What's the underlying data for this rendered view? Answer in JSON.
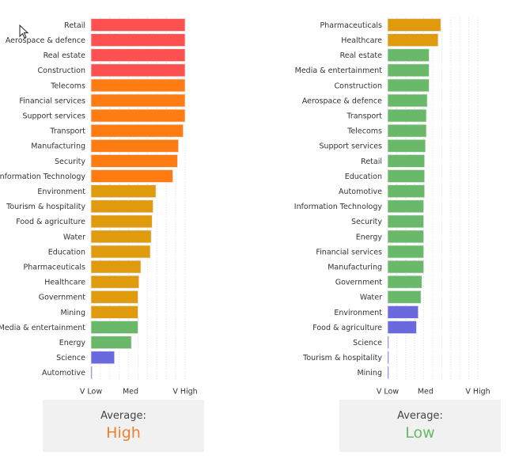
{
  "scale_labels": [
    "V Low",
    "Med",
    "V High"
  ],
  "colors": {
    "red": "#fd5051",
    "orange": "#ff7c12",
    "amber": "#e09a0e",
    "green": "#6ab86a",
    "blue": "#6a6ade"
  },
  "chart_data": [
    {
      "type": "bar",
      "orientation": "horizontal",
      "xlim": [
        0,
        1
      ],
      "x_ticks": [
        "V Low",
        "Med",
        "V High"
      ],
      "categories": [
        "Retail",
        "Aerospace & defence",
        "Real estate",
        "Construction",
        "Telecoms",
        "Financial services",
        "Support services",
        "Transport",
        "Manufacturing",
        "Security",
        "Information Technology",
        "Environment",
        "Tourism & hospitality",
        "Food & agriculture",
        "Water",
        "Education",
        "Pharmaceuticals",
        "Healthcare",
        "Government",
        "Mining",
        "Media & entertainment",
        "Energy",
        "Science",
        "Automotive"
      ],
      "values": [
        1.0,
        1.0,
        1.0,
        1.0,
        1.0,
        1.0,
        1.0,
        0.98,
        0.93,
        0.92,
        0.87,
        0.69,
        0.66,
        0.65,
        0.64,
        0.63,
        0.53,
        0.51,
        0.5,
        0.5,
        0.5,
        0.43,
        0.25,
        0.0
      ],
      "bar_colors": [
        "red",
        "red",
        "red",
        "red",
        "orange",
        "orange",
        "orange",
        "orange",
        "orange",
        "orange",
        "orange",
        "amber",
        "amber",
        "amber",
        "amber",
        "amber",
        "amber",
        "amber",
        "amber",
        "amber",
        "green",
        "green",
        "blue",
        "blue"
      ],
      "average_label": "Average:",
      "average_value": "High",
      "average_color": "#f07e2c"
    },
    {
      "type": "bar",
      "orientation": "horizontal",
      "xlim": [
        0,
        1
      ],
      "x_ticks": [
        "V Low",
        "Med",
        "V High"
      ],
      "categories": [
        "Pharmaceuticals",
        "Healthcare",
        "Real estate",
        "Media & entertainment",
        "Construction",
        "Aerospace & defence",
        "Transport",
        "Telecoms",
        "Support services",
        "Retail",
        "Education",
        "Automotive",
        "Information Technology",
        "Security",
        "Energy",
        "Financial services",
        "Manufacturing",
        "Government",
        "Water",
        "Environment",
        "Food & agriculture",
        "Science",
        "Tourism & hospitality",
        "Mining"
      ],
      "values": [
        0.59,
        0.56,
        0.46,
        0.46,
        0.46,
        0.44,
        0.43,
        0.43,
        0.42,
        0.41,
        0.41,
        0.41,
        0.4,
        0.4,
        0.4,
        0.4,
        0.4,
        0.38,
        0.37,
        0.34,
        0.32,
        0.0,
        0.0,
        0.0
      ],
      "bar_colors": [
        "amber",
        "amber",
        "green",
        "green",
        "green",
        "green",
        "green",
        "green",
        "green",
        "green",
        "green",
        "green",
        "green",
        "green",
        "green",
        "green",
        "green",
        "green",
        "green",
        "blue",
        "blue",
        "blue",
        "blue",
        "blue"
      ],
      "average_label": "Average:",
      "average_value": "Low",
      "average_color": "#6ab86a"
    }
  ]
}
